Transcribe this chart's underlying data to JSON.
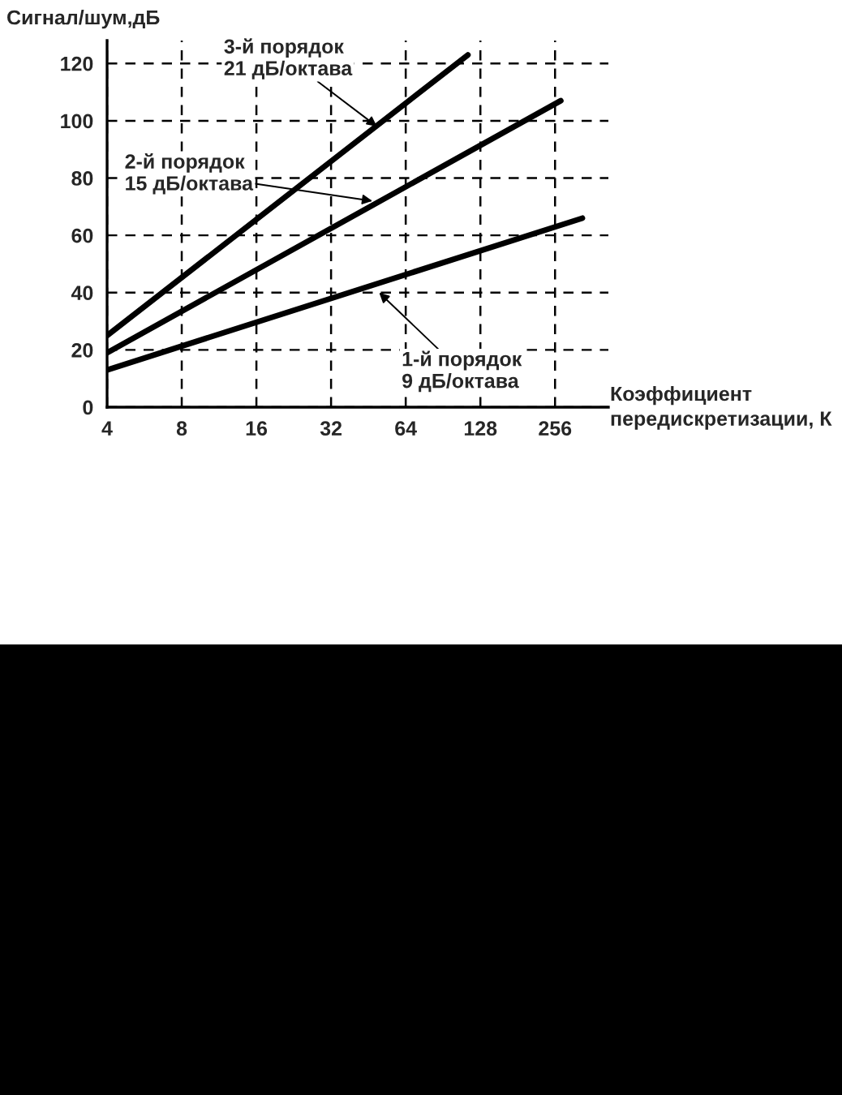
{
  "chart_data": {
    "type": "line",
    "ylabel": "Сигнал/шум,дБ",
    "xlabel": "Коэффициент\nпередискретизации, К",
    "series": [
      {
        "x": [
          4,
          114
        ],
        "values": [
          25,
          123
        ],
        "color": "#000000"
      },
      {
        "x": [
          4,
          270
        ],
        "values": [
          19,
          107
        ],
        "color": "#000000"
      },
      {
        "x": [
          4,
          330
        ],
        "values": [
          13,
          66
        ],
        "color": "#000000"
      }
    ],
    "annotations": [
      {
        "text": "3-й порядок\n21 дБ/октава",
        "x": 49,
        "y": 98
      },
      {
        "text": "2-й порядок\n15 дБ/октава",
        "x": 47,
        "y": 72
      },
      {
        "text": "1-й порядок\n9 дБ/октава",
        "x": 50,
        "y": 40
      }
    ],
    "log": "x",
    "xlim": [
      4,
      420
    ],
    "xticks": [
      4,
      8,
      16,
      32,
      64,
      128,
      256
    ],
    "ylim": [
      0,
      128
    ],
    "yticks": [
      0,
      20,
      40,
      60,
      80,
      100,
      120
    ],
    "grid": true,
    "line_style": "solid",
    "marker": "none"
  }
}
